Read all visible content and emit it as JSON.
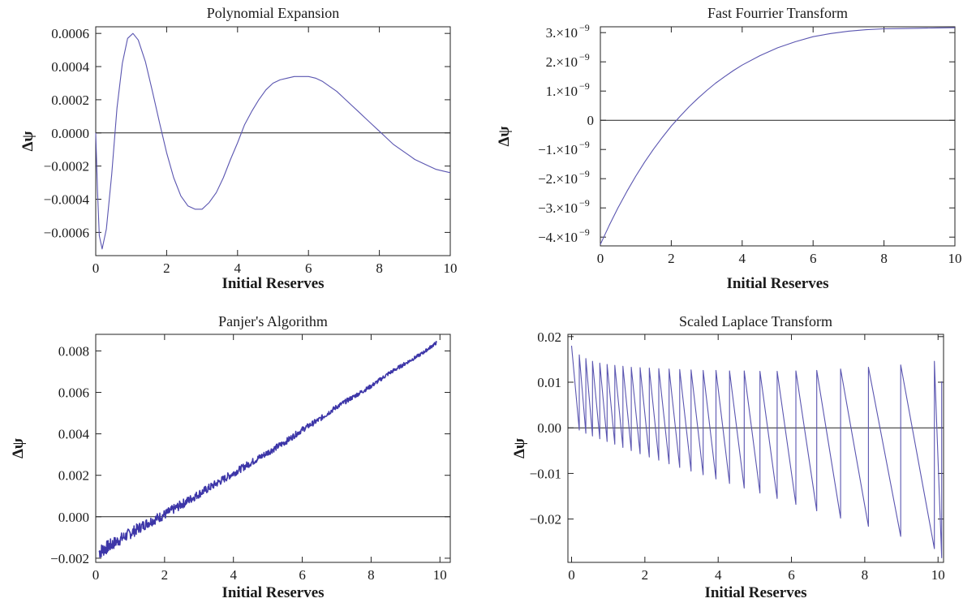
{
  "chart_data": [
    {
      "type": "line",
      "title": "Polynomial Expansion",
      "xlabel": "Initial Reserves",
      "ylabel": "Δψ",
      "xlim": [
        0,
        10
      ],
      "ylim": [
        -0.00074,
        0.00064
      ],
      "line_color": "#5a55b0",
      "x_ticks": [
        0,
        2,
        4,
        6,
        8,
        10
      ],
      "x_tick_labels": [
        "0",
        "2",
        "4",
        "6",
        "8",
        "10"
      ],
      "y_ticks": [
        -0.0006,
        -0.0004,
        -0.0002,
        0.0,
        0.0002,
        0.0004,
        0.0006
      ],
      "y_tick_labels": [
        "−0.0006",
        "−0.0004",
        "−0.0002",
        "0.0000",
        "0.0002",
        "0.0004",
        "0.0006"
      ],
      "zero_line": true,
      "x": [
        0,
        0.05,
        0.1,
        0.18,
        0.3,
        0.45,
        0.6,
        0.75,
        0.9,
        1.05,
        1.2,
        1.4,
        1.6,
        1.8,
        2.0,
        2.2,
        2.4,
        2.6,
        2.8,
        3.0,
        3.2,
        3.4,
        3.6,
        3.8,
        4.0,
        4.2,
        4.4,
        4.6,
        4.8,
        5.0,
        5.2,
        5.4,
        5.6,
        5.8,
        6.0,
        6.2,
        6.4,
        6.6,
        6.8,
        7.0,
        7.2,
        7.4,
        7.6,
        7.8,
        8.0,
        8.2,
        8.4,
        8.6,
        8.8,
        9.0,
        9.2,
        9.4,
        9.6,
        9.8,
        10.0
      ],
      "y": [
        0.0,
        -0.00035,
        -0.00062,
        -0.0007,
        -0.00058,
        -0.00025,
        0.00015,
        0.00042,
        0.00057,
        0.0006,
        0.00056,
        0.00043,
        0.00025,
        6e-05,
        -0.00012,
        -0.00027,
        -0.00038,
        -0.00044,
        -0.00046,
        -0.00046,
        -0.00042,
        -0.00036,
        -0.00027,
        -0.00016,
        -6e-05,
        5e-05,
        0.00013,
        0.0002,
        0.00026,
        0.0003,
        0.00032,
        0.00033,
        0.00034,
        0.00034,
        0.00034,
        0.00033,
        0.00031,
        0.00028,
        0.00025,
        0.00021,
        0.00017,
        0.00013,
        9e-05,
        5e-05,
        1e-05,
        -3e-05,
        -7e-05,
        -0.0001,
        -0.00013,
        -0.00016,
        -0.00018,
        -0.0002,
        -0.00022,
        -0.00023,
        -0.00024
      ]
    },
    {
      "type": "line",
      "title": "Fast Fourrier Transform",
      "xlabel": "Initial Reserves",
      "ylabel": "Δψ",
      "xlim": [
        0,
        10
      ],
      "ylim": [
        -4.3,
        3.2
      ],
      "y_unit_scale": "1e-9",
      "line_color": "#5a55b0",
      "x_ticks": [
        0,
        2,
        4,
        6,
        8,
        10
      ],
      "x_tick_labels": [
        "0",
        "2",
        "4",
        "6",
        "8",
        "10"
      ],
      "y_ticks": [
        -4,
        -3,
        -2,
        -1,
        0,
        1,
        2,
        3
      ],
      "y_tick_labels": [
        "−4.×10",
        "−3.×10",
        "−2.×10",
        "−1.×10",
        "0",
        "1.×10",
        "2.×10",
        "3.×10"
      ],
      "y_tick_exponents": [
        "−9",
        "−9",
        "−9",
        "−9",
        "",
        "−9",
        "−9",
        "−9"
      ],
      "zero_line": true,
      "x": [
        0,
        0.25,
        0.5,
        0.75,
        1.0,
        1.25,
        1.5,
        1.75,
        2.0,
        2.25,
        2.5,
        2.75,
        3.0,
        3.25,
        3.5,
        3.75,
        4.0,
        4.5,
        5.0,
        5.5,
        6.0,
        6.5,
        7.0,
        7.5,
        8.0,
        8.5,
        9.0,
        9.5,
        10.0
      ],
      "y": [
        -4.25,
        -3.6,
        -2.99,
        -2.43,
        -1.91,
        -1.43,
        -0.99,
        -0.58,
        -0.2,
        0.14,
        0.46,
        0.75,
        1.02,
        1.27,
        1.49,
        1.7,
        1.89,
        2.21,
        2.48,
        2.69,
        2.86,
        2.97,
        3.05,
        3.1,
        3.13,
        3.14,
        3.15,
        3.16,
        3.17
      ]
    },
    {
      "type": "line",
      "title": "Panjer's Algorithm",
      "xlabel": "Initial Reserves",
      "ylabel": "Δψ",
      "xlim": [
        0,
        10.3
      ],
      "ylim": [
        -0.0022,
        0.0088
      ],
      "line_color": "#3d36a8",
      "x_ticks": [
        0,
        2,
        4,
        6,
        8,
        10
      ],
      "x_tick_labels": [
        "0",
        "2",
        "4",
        "6",
        "8",
        "10"
      ],
      "y_ticks": [
        -0.002,
        0.0,
        0.002,
        0.004,
        0.006,
        0.008
      ],
      "y_tick_labels": [
        "−0.002",
        "0.000",
        "0.002",
        "0.004",
        "0.006",
        "0.008"
      ],
      "zero_line": true,
      "noisy_band": true,
      "x": [
        0.1,
        0.5,
        1.0,
        1.5,
        2.0,
        2.5,
        3.0,
        3.5,
        4.0,
        4.5,
        5.0,
        5.5,
        6.0,
        6.5,
        7.0,
        7.5,
        8.0,
        8.5,
        9.0,
        9.5,
        9.9
      ],
      "y": [
        -0.0017,
        -0.0013,
        -0.0008,
        -0.0003,
        0.0001,
        0.0006,
        0.0011,
        0.0016,
        0.0021,
        0.0026,
        0.0031,
        0.0036,
        0.0042,
        0.0047,
        0.0053,
        0.0058,
        0.0063,
        0.0069,
        0.0074,
        0.0079,
        0.0084
      ],
      "band_halfwidth": [
        0.00035,
        0.0003,
        0.00028,
        0.00025,
        0.00024,
        0.00022,
        0.0002,
        0.00019,
        0.00018,
        0.00017,
        0.00016,
        0.00015,
        0.00014,
        0.00013,
        0.00012,
        0.00011,
        0.0001,
        0.0001,
        9e-05,
        8e-05,
        8e-05
      ]
    },
    {
      "type": "line",
      "title": "Scaled Laplace Transform",
      "xlabel": "Initial Reserves",
      "ylabel": "Δψ",
      "xlim": [
        -0.1,
        10.15
      ],
      "ylim": [
        -0.0295,
        0.0205
      ],
      "line_color": "#5a55b0",
      "x_ticks": [
        0,
        2,
        4,
        6,
        8,
        10
      ],
      "x_tick_labels": [
        "0",
        "2",
        "4",
        "6",
        "8",
        "10"
      ],
      "y_ticks": [
        -0.02,
        -0.01,
        0.0,
        0.01,
        0.02
      ],
      "y_tick_labels": [
        "−0.02",
        "−0.01",
        "0.00",
        "0.01",
        "0.02"
      ],
      "zero_line": true,
      "sawtooth": true,
      "teeth_x": [
        0.0,
        0.21,
        0.39,
        0.57,
        0.77,
        0.97,
        1.18,
        1.4,
        1.63,
        1.87,
        2.12,
        2.38,
        2.66,
        2.95,
        3.26,
        3.59,
        3.94,
        4.31,
        4.71,
        5.14,
        5.61,
        6.12,
        6.69,
        7.34,
        8.1,
        8.98,
        9.9,
        10.1
      ],
      "teeth_top": [
        0.018,
        0.016,
        0.0152,
        0.0146,
        0.0142,
        0.0139,
        0.0137,
        0.0135,
        0.0133,
        0.0132,
        0.0131,
        0.013,
        0.0129,
        0.0128,
        0.0127,
        0.0126,
        0.0126,
        0.0125,
        0.0125,
        0.0124,
        0.0124,
        0.0125,
        0.0126,
        0.0129,
        0.0133,
        0.0138,
        0.0146
      ],
      "teeth_bottom": [
        -0.0005,
        -0.0012,
        -0.0018,
        -0.0024,
        -0.003,
        -0.0036,
        -0.0043,
        -0.005,
        -0.0057,
        -0.0064,
        -0.0071,
        -0.0079,
        -0.0087,
        -0.0095,
        -0.0103,
        -0.0112,
        -0.0122,
        -0.0132,
        -0.0143,
        -0.0155,
        -0.0168,
        -0.0182,
        -0.0198,
        -0.0216,
        -0.0238,
        -0.0265,
        -0.0285
      ],
      "end_value": 0.0102
    }
  ]
}
